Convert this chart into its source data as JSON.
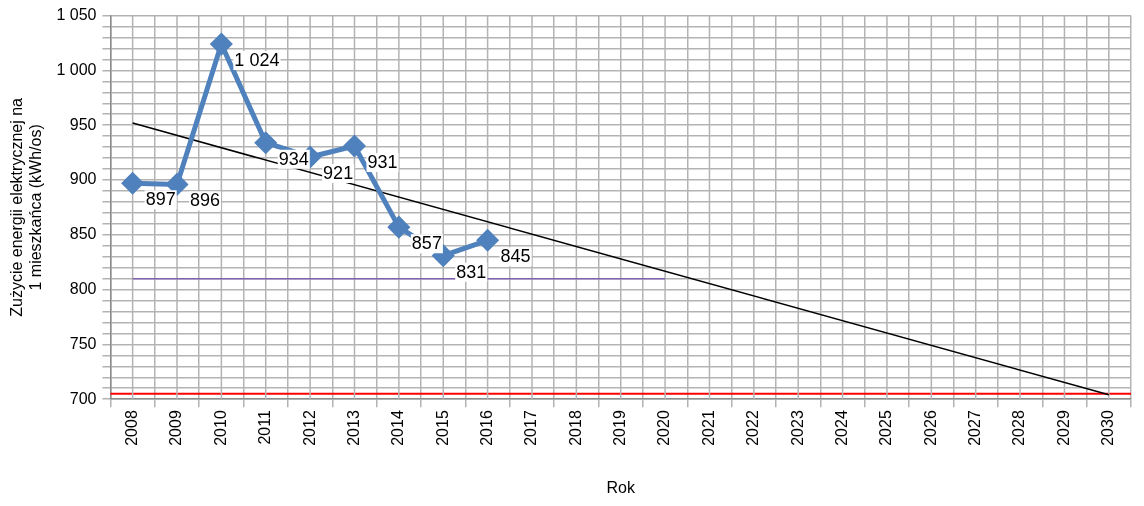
{
  "chart_data": {
    "type": "line",
    "xlabel": "Rok",
    "ylabel": "Zużycie energii elektrycznej na 1 mieszkańca (kWh/os)",
    "categories": [
      "2008",
      "2009",
      "2010",
      "2011",
      "2012",
      "2013",
      "2014",
      "2015",
      "2016",
      "2017",
      "2018",
      "2019",
      "2020",
      "2021",
      "2022",
      "2023",
      "2024",
      "2025",
      "2026",
      "2027",
      "2028",
      "2029",
      "2030"
    ],
    "series": [
      {
        "color": "#4f81bd",
        "marker": "diamond",
        "values": [
          897,
          896,
          1024,
          934,
          921,
          931,
          857,
          831,
          845,
          null,
          null,
          null,
          null,
          null,
          null,
          null,
          null,
          null,
          null,
          null,
          null,
          null,
          null
        ],
        "value_labels": [
          "897",
          "896",
          "1 024",
          "934",
          "921",
          "931",
          "857",
          "831",
          "845",
          null,
          null,
          null,
          null,
          null,
          null,
          null,
          null,
          null,
          null,
          null,
          null,
          null,
          null
        ]
      },
      {
        "color": "#000000",
        "marker": "none",
        "values": [
          952,
          null,
          null,
          null,
          null,
          null,
          null,
          null,
          null,
          null,
          null,
          null,
          null,
          null,
          null,
          null,
          null,
          null,
          null,
          null,
          null,
          null,
          704
        ]
      },
      {
        "color": "#7f63b0",
        "marker": "none",
        "values": [
          810,
          810,
          810,
          810,
          810,
          810,
          810,
          810,
          810,
          810,
          810,
          810,
          810,
          null,
          null,
          null,
          null,
          null,
          null,
          null,
          null,
          null,
          null
        ]
      }
    ],
    "ref_lines": [
      {
        "axis": "y",
        "value": 705,
        "color": "#ff0000"
      }
    ],
    "ylim": [
      700,
      1050
    ],
    "yticks": [
      700,
      {
        "value": 710,
        "label": null
      },
      {
        "value": 720,
        "label": null
      },
      {
        "value": 730,
        "label": null
      },
      {
        "value": 740,
        "label": null
      },
      750,
      {
        "value": 760,
        "label": null
      },
      {
        "value": 770,
        "label": null
      },
      {
        "value": 780,
        "label": null
      },
      {
        "value": 790,
        "label": null
      },
      800,
      {
        "value": 810,
        "label": null
      },
      {
        "value": 820,
        "label": null
      },
      {
        "value": 830,
        "label": null
      },
      {
        "value": 840,
        "label": null
      },
      850,
      {
        "value": 860,
        "label": null
      },
      {
        "value": 870,
        "label": null
      },
      {
        "value": 880,
        "label": null
      },
      {
        "value": 890,
        "label": null
      },
      900,
      {
        "value": 910,
        "label": null
      },
      {
        "value": 920,
        "label": null
      },
      {
        "value": 930,
        "label": null
      },
      {
        "value": 940,
        "label": null
      },
      950,
      {
        "value": 960,
        "label": null
      },
      {
        "value": 970,
        "label": null
      },
      {
        "value": 980,
        "label": null
      },
      {
        "value": 990,
        "label": null
      },
      {
        "value": 1000,
        "label": "1 000"
      },
      {
        "value": 1010,
        "label": null
      },
      {
        "value": 1020,
        "label": null
      },
      {
        "value": 1030,
        "label": null
      },
      {
        "value": 1040,
        "label": null
      },
      {
        "value": 1050,
        "label": "1 050"
      }
    ],
    "grid": true,
    "legend": false
  }
}
